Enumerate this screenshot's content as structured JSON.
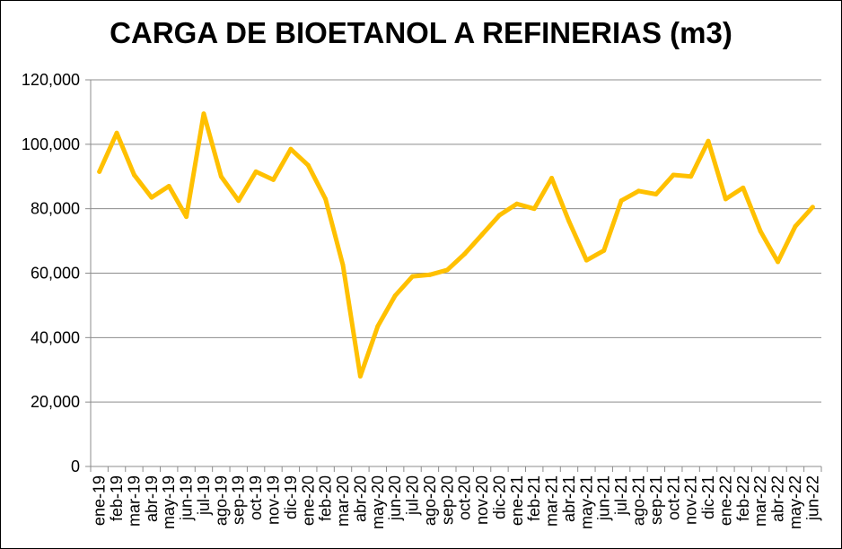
{
  "chart_data": {
    "type": "line",
    "title": "CARGA DE BIOETANOL A REFINERIAS (m3)",
    "xlabel": "",
    "ylabel": "",
    "ylim": [
      0,
      120000
    ],
    "yticks": [
      "0",
      "20,000",
      "40,000",
      "60,000",
      "80,000",
      "100,000",
      "120,000"
    ],
    "ytick_values": [
      0,
      20000,
      40000,
      60000,
      80000,
      100000,
      120000
    ],
    "grid": true,
    "legend": "none",
    "line_color": "#FFC000",
    "categories": [
      "ene-19",
      "feb-19",
      "mar-19",
      "abr-19",
      "may-19",
      "jun-19",
      "jul-19",
      "ago-19",
      "sep-19",
      "oct-19",
      "nov-19",
      "dic-19",
      "ene-20",
      "feb-20",
      "mar-20",
      "abr-20",
      "may-20",
      "jun-20",
      "jul-20",
      "ago-20",
      "sep-20",
      "oct-20",
      "nov-20",
      "dic-20",
      "ene-21",
      "feb-21",
      "mar-21",
      "abr-21",
      "may-21",
      "jun-21",
      "jul-21",
      "ago-21",
      "sep-21",
      "oct-21",
      "nov-21",
      "dic-21",
      "ene-22",
      "feb-22",
      "mar-22",
      "abr-22",
      "may-22",
      "jun-22"
    ],
    "series": [
      {
        "values": [
          91500,
          103500,
          90500,
          83500,
          87000,
          77500,
          109500,
          90000,
          82500,
          91500,
          89000,
          98500,
          93500,
          83000,
          62500,
          28000,
          43500,
          53000,
          59000,
          59500,
          61000,
          66000,
          72000,
          78000,
          81500,
          80000,
          89500,
          76000,
          64000,
          67000,
          82500,
          85500,
          84500,
          90500,
          90000,
          101000,
          83000,
          86500,
          73000,
          63500,
          74500,
          80500
        ]
      }
    ]
  }
}
